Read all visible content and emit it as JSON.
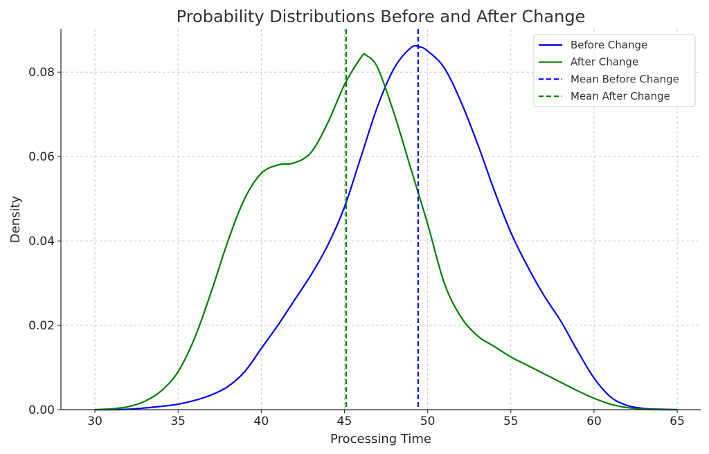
{
  "chart_data": {
    "type": "line",
    "title": "Probability Distributions Before and After Change",
    "xlabel": "Processing Time",
    "ylabel": "Density",
    "xlim": [
      27.96,
      66.41
    ],
    "ylim": [
      0,
      0.0902
    ],
    "xticks": [
      30,
      35,
      40,
      45,
      50,
      55,
      60,
      65
    ],
    "xtick_labels": [
      "30",
      "35",
      "40",
      "45",
      "50",
      "55",
      "60",
      "65"
    ],
    "yticks": [
      0,
      0.02,
      0.04,
      0.06,
      0.08
    ],
    "ytick_labels": [
      "0.00",
      "0.02",
      "0.04",
      "0.06",
      "0.08"
    ],
    "grid": true,
    "legend_position": "top-right",
    "series": [
      {
        "name": "Before Change",
        "color": "#0000ff",
        "style": "solid",
        "x": [
          30,
          32,
          34,
          35,
          36,
          37,
          38,
          39,
          40,
          41,
          42,
          43,
          44,
          45,
          46,
          47,
          48,
          49,
          49.5,
          50,
          51,
          52,
          53,
          54,
          55,
          56,
          57,
          58,
          59,
          60,
          61,
          62,
          63,
          64,
          65
        ],
        "y": [
          0,
          0.0001,
          0.0008,
          0.0013,
          0.0022,
          0.0035,
          0.0055,
          0.009,
          0.0145,
          0.02,
          0.026,
          0.032,
          0.039,
          0.048,
          0.06,
          0.072,
          0.081,
          0.0858,
          0.086,
          0.085,
          0.081,
          0.073,
          0.063,
          0.052,
          0.042,
          0.034,
          0.027,
          0.021,
          0.014,
          0.0075,
          0.003,
          0.001,
          0.0003,
          0.0001,
          0
        ]
      },
      {
        "name": "After Change",
        "color": "#008000",
        "style": "solid",
        "x": [
          30,
          31,
          32,
          33,
          34,
          35,
          36,
          37,
          38,
          39,
          40,
          41,
          42,
          43,
          44,
          45,
          46,
          46.3,
          47,
          48,
          49,
          50,
          51,
          52,
          53,
          54,
          55,
          56,
          57,
          58,
          59,
          60,
          61,
          62,
          63,
          64,
          65
        ],
        "y": [
          0,
          0.0002,
          0.0007,
          0.002,
          0.0045,
          0.009,
          0.017,
          0.028,
          0.04,
          0.05,
          0.056,
          0.058,
          0.0585,
          0.061,
          0.068,
          0.077,
          0.0835,
          0.084,
          0.081,
          0.07,
          0.057,
          0.044,
          0.03,
          0.022,
          0.0175,
          0.015,
          0.0125,
          0.0105,
          0.0085,
          0.0065,
          0.0045,
          0.0027,
          0.0013,
          0.0005,
          0.0001,
          0,
          0
        ]
      },
      {
        "name": "Mean Before Change",
        "color": "#0000ff",
        "style": "dashed",
        "vline": 49.43
      },
      {
        "name": "Mean After Change",
        "color": "#008000",
        "style": "dashed",
        "vline": 45.1
      }
    ]
  }
}
